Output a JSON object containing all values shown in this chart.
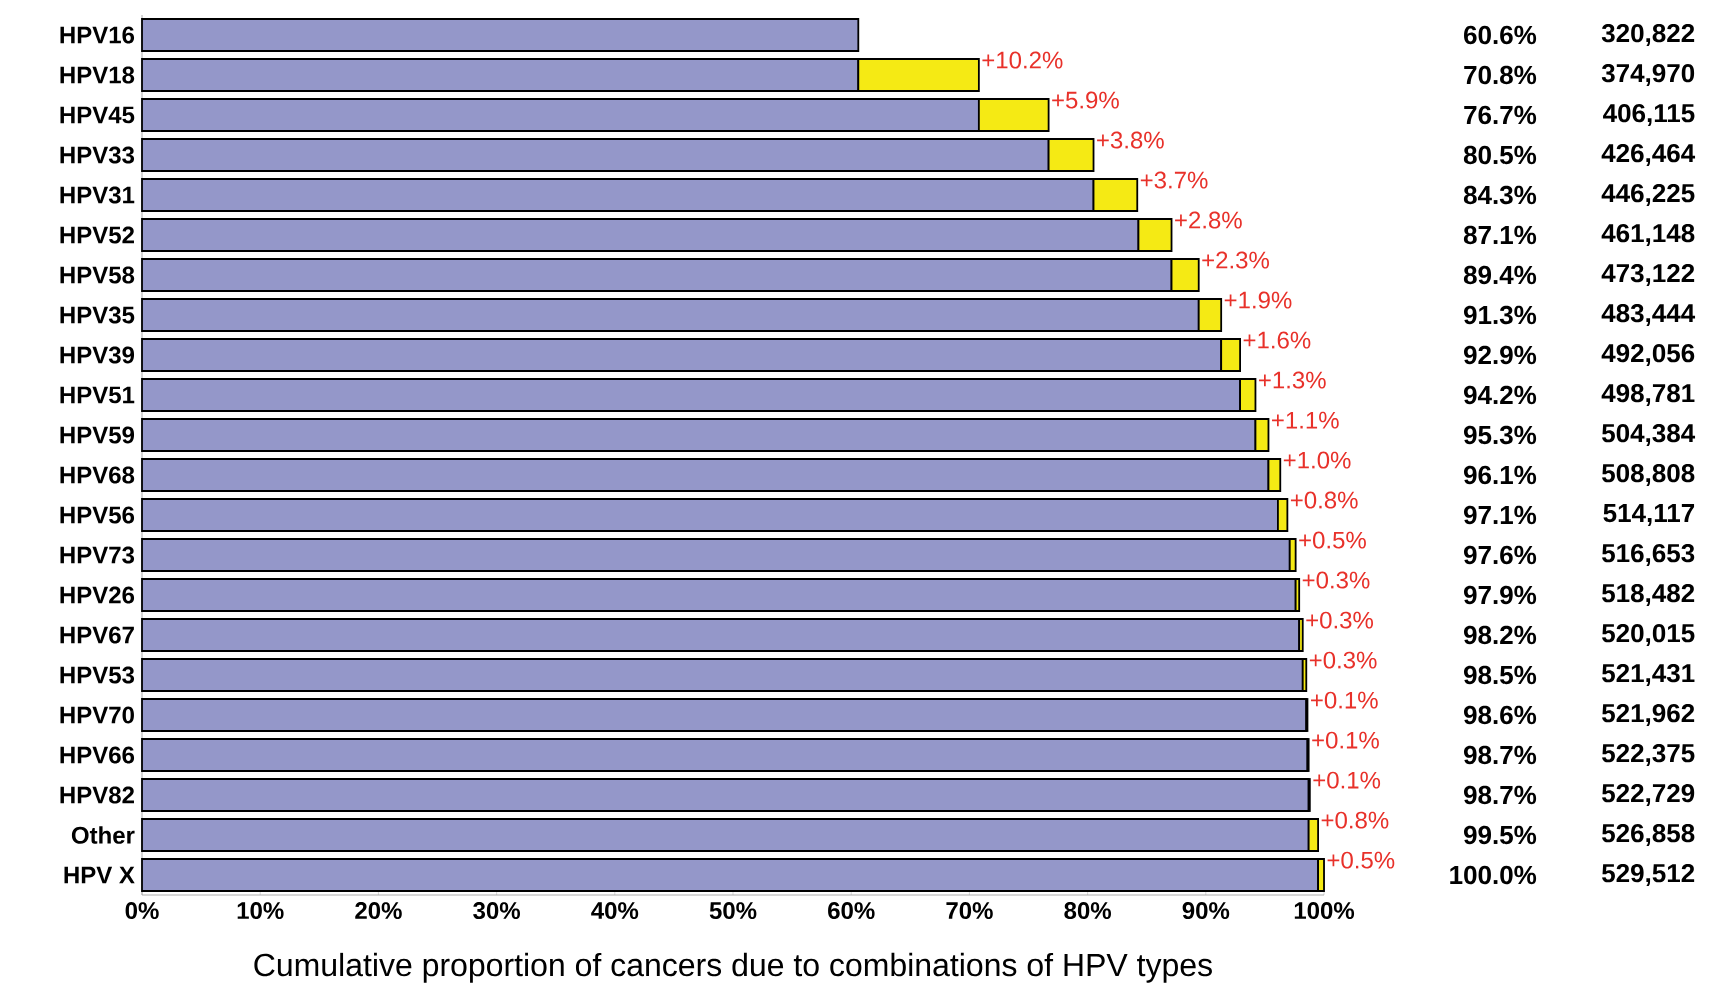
{
  "chart_data": {
    "type": "bar",
    "orientation": "horizontal",
    "stacked": true,
    "xlabel": "Cumulative proportion of cancers due to combinations of HPV types",
    "categories": [
      "HPV16",
      "HPV18",
      "HPV45",
      "HPV33",
      "HPV31",
      "HPV52",
      "HPV58",
      "HPV35",
      "HPV39",
      "HPV51",
      "HPV59",
      "HPV68",
      "HPV56",
      "HPV73",
      "HPV26",
      "HPV67",
      "HPV53",
      "HPV70",
      "HPV66",
      "HPV82",
      "Other",
      "HPV X"
    ],
    "series": [
      {
        "color": "#9497c9",
        "values": [
          60.6,
          60.6,
          70.8,
          76.7,
          80.5,
          84.3,
          87.1,
          89.4,
          91.3,
          92.9,
          94.2,
          95.3,
          96.1,
          97.1,
          97.6,
          97.9,
          98.2,
          98.5,
          98.6,
          98.7,
          98.7,
          99.5
        ]
      },
      {
        "color": "#f5ea14",
        "values": [
          null,
          10.2,
          5.9,
          3.8,
          3.7,
          2.8,
          2.3,
          1.9,
          1.6,
          1.3,
          1.1,
          1.0,
          0.8,
          0.5,
          0.3,
          0.3,
          0.3,
          0.1,
          0.1,
          0.1,
          0.8,
          0.5
        ],
        "value_labels": [
          null,
          "+10.2%",
          "+5.9%",
          "+3.8%",
          "+3.7%",
          "+2.8%",
          "+2.3%",
          "+1.9%",
          "+1.6%",
          "+1.3%",
          "+1.1%",
          "+1.0%",
          "+0.8%",
          "+0.5%",
          "+0.3%",
          "+0.3%",
          "+0.3%",
          "+0.1%",
          "+0.1%",
          "+0.1%",
          "+0.8%",
          "+0.5%"
        ]
      }
    ],
    "annotations": [
      "60.6%",
      "70.8%",
      "76.7%",
      "80.5%",
      "84.3%",
      "87.1%",
      "89.4%",
      "91.3%",
      "92.9%",
      "94.2%",
      "95.3%",
      "96.1%",
      "97.1%",
      "97.6%",
      "97.9%",
      "98.2%",
      "98.5%",
      "98.6%",
      "98.7%",
      "98.7%",
      "99.5%",
      "100.0%",
      "320,822",
      "374,970",
      "406,115",
      "426,464",
      "446,225",
      "461,148",
      "473,122",
      "483,444",
      "492,056",
      "498,781",
      "504,384",
      "508,808",
      "514,117",
      "516,653",
      "518,482",
      "520,015",
      "521,431",
      "521,962",
      "522,375",
      "522,729",
      "526,858",
      "529,512"
    ],
    "xlim": [
      0,
      100
    ],
    "xticks": [
      {
        "value": 0,
        "label": "0%"
      },
      {
        "value": 10,
        "label": "10%"
      },
      {
        "value": 20,
        "label": "20%"
      },
      {
        "value": 30,
        "label": "30%"
      },
      {
        "value": 40,
        "label": "40%"
      },
      {
        "value": 50,
        "label": "50%"
      },
      {
        "value": 60,
        "label": "60%"
      },
      {
        "value": 70,
        "label": "70%"
      },
      {
        "value": 80,
        "label": "80%"
      },
      {
        "value": 90,
        "label": "90%"
      },
      {
        "value": 100,
        "label": "100%"
      }
    ],
    "grid": false
  }
}
